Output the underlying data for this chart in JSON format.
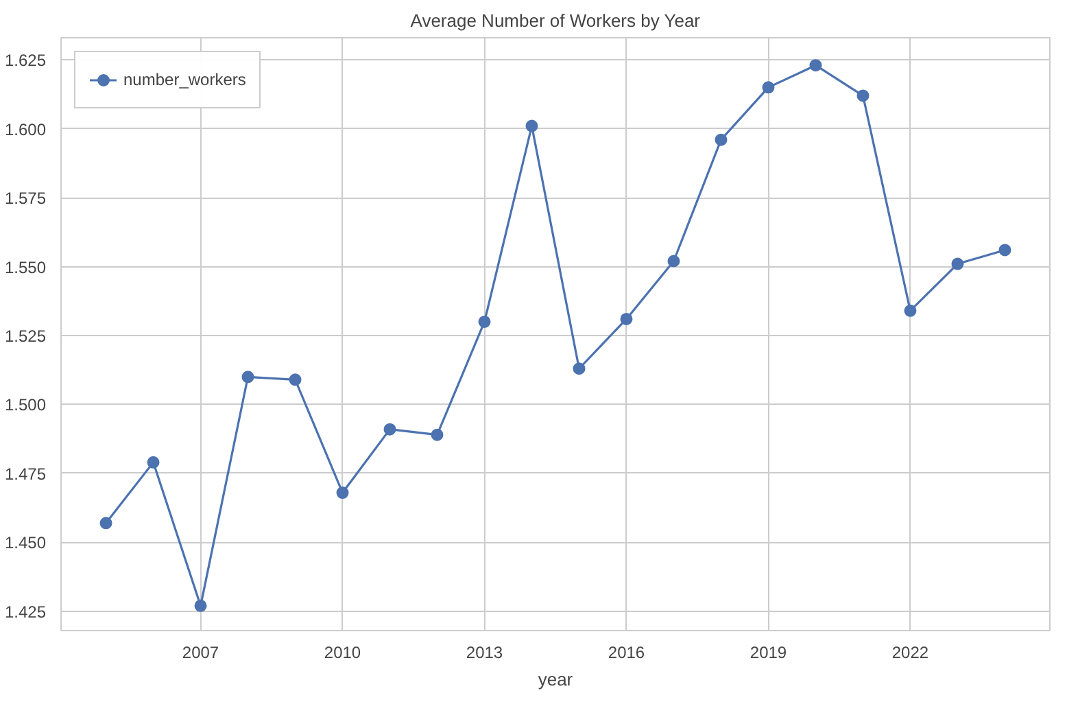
{
  "chart_data": {
    "type": "line",
    "title": "Average Number of Workers by Year",
    "xlabel": "year",
    "x": [
      2005,
      2006,
      2007,
      2008,
      2009,
      2010,
      2011,
      2012,
      2013,
      2014,
      2015,
      2016,
      2017,
      2018,
      2019,
      2020,
      2021,
      2022,
      2023,
      2024
    ],
    "series": [
      {
        "name": "number_workers",
        "color": "#4c72b0",
        "values": [
          1.457,
          1.479,
          1.427,
          1.51,
          1.509,
          1.468,
          1.491,
          1.489,
          1.53,
          1.601,
          1.513,
          1.531,
          1.552,
          1.596,
          1.615,
          1.623,
          1.612,
          1.534,
          1.551,
          1.556
        ]
      }
    ],
    "xlim": [
      2004.05,
      2024.95
    ],
    "ylim": [
      1.418,
      1.633
    ],
    "xticks": [
      2007,
      2010,
      2013,
      2016,
      2019,
      2022
    ],
    "yticks": [
      {
        "value": 1.425,
        "label": "1.425"
      },
      {
        "value": 1.45,
        "label": "1.450"
      },
      {
        "value": 1.475,
        "label": "1.475"
      },
      {
        "value": 1.5,
        "label": "1.500"
      },
      {
        "value": 1.525,
        "label": "1.525"
      },
      {
        "value": 1.55,
        "label": "1.550"
      },
      {
        "value": 1.575,
        "label": "1.575"
      },
      {
        "value": 1.6,
        "label": "1.600"
      },
      {
        "value": 1.625,
        "label": "1.625"
      }
    ],
    "grid": true,
    "legend": "top left",
    "marker": "circle",
    "line_style": "solid"
  }
}
